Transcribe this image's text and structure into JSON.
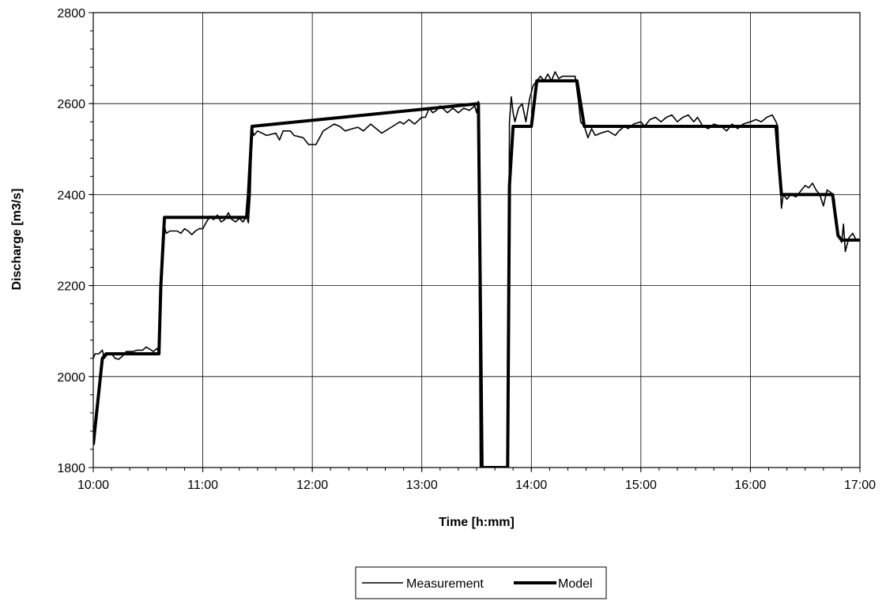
{
  "chart_data": {
    "type": "line",
    "title": "",
    "xlabel": "Time [h:mm]",
    "ylabel": "Discharge [m3/s]",
    "xlim": [
      "10:00",
      "17:00"
    ],
    "ylim": [
      1800,
      2800
    ],
    "grid": true,
    "legend_position": "bottom-center",
    "x_tick_labels": [
      "10:00",
      "11:00",
      "12:00",
      "13:00",
      "14:00",
      "15:00",
      "16:00",
      "17:00"
    ],
    "y_tick_labels": [
      "1800",
      "2000",
      "2200",
      "2400",
      "2600",
      "2800"
    ],
    "series": [
      {
        "name": "Measurement",
        "line_width": "thin",
        "color": "#000000",
        "points": [
          [
            "10:00",
            2040
          ],
          [
            "10:01",
            2050
          ],
          [
            "10:03",
            2050
          ],
          [
            "10:05",
            2058
          ],
          [
            "10:06",
            2040
          ],
          [
            "10:08",
            2050
          ],
          [
            "10:10",
            2050
          ],
          [
            "10:12",
            2040
          ],
          [
            "10:14",
            2038
          ],
          [
            "10:16",
            2045
          ],
          [
            "10:18",
            2055
          ],
          [
            "10:22",
            2055
          ],
          [
            "10:24",
            2058
          ],
          [
            "10:27",
            2058
          ],
          [
            "10:29",
            2065
          ],
          [
            "10:31",
            2060
          ],
          [
            "10:33",
            2055
          ],
          [
            "10:35",
            2062
          ],
          [
            "10:36",
            2050
          ],
          [
            "10:37",
            2200
          ],
          [
            "10:38",
            2310
          ],
          [
            "10:39",
            2330
          ],
          [
            "10:40",
            2315
          ],
          [
            "10:42",
            2320
          ],
          [
            "10:46",
            2320
          ],
          [
            "10:48",
            2315
          ],
          [
            "10:50",
            2325
          ],
          [
            "10:52",
            2320
          ],
          [
            "10:54",
            2312
          ],
          [
            "10:56",
            2320
          ],
          [
            "10:58",
            2325
          ],
          [
            "11:00",
            2325
          ],
          [
            "11:02",
            2340
          ],
          [
            "11:04",
            2352
          ],
          [
            "11:06",
            2345
          ],
          [
            "11:08",
            2355
          ],
          [
            "11:10",
            2340
          ],
          [
            "11:12",
            2345
          ],
          [
            "11:14",
            2360
          ],
          [
            "11:16",
            2345
          ],
          [
            "11:18",
            2340
          ],
          [
            "11:20",
            2348
          ],
          [
            "11:22",
            2340
          ],
          [
            "11:24",
            2352
          ],
          [
            "11:25",
            2338
          ],
          [
            "11:26",
            2400
          ],
          [
            "11:27",
            2545
          ],
          [
            "11:28",
            2530
          ],
          [
            "11:30",
            2540
          ],
          [
            "11:35",
            2530
          ],
          [
            "11:40",
            2535
          ],
          [
            "11:42",
            2520
          ],
          [
            "11:44",
            2540
          ],
          [
            "11:48",
            2540
          ],
          [
            "11:50",
            2530
          ],
          [
            "11:55",
            2525
          ],
          [
            "11:58",
            2510
          ],
          [
            "12:02",
            2510
          ],
          [
            "12:04",
            2525
          ],
          [
            "12:06",
            2540
          ],
          [
            "12:10",
            2550
          ],
          [
            "12:12",
            2555
          ],
          [
            "12:15",
            2550
          ],
          [
            "12:18",
            2540
          ],
          [
            "12:22",
            2545
          ],
          [
            "12:25",
            2548
          ],
          [
            "12:28",
            2540
          ],
          [
            "12:32",
            2555
          ],
          [
            "12:35",
            2545
          ],
          [
            "12:38",
            2535
          ],
          [
            "12:40",
            2540
          ],
          [
            "12:44",
            2550
          ],
          [
            "12:48",
            2560
          ],
          [
            "12:50",
            2555
          ],
          [
            "12:53",
            2565
          ],
          [
            "12:56",
            2555
          ],
          [
            "13:00",
            2570
          ],
          [
            "13:02",
            2570
          ],
          [
            "13:04",
            2590
          ],
          [
            "13:06",
            2580
          ],
          [
            "13:08",
            2585
          ],
          [
            "13:10",
            2595
          ],
          [
            "13:14",
            2580
          ],
          [
            "13:17",
            2590
          ],
          [
            "13:20",
            2580
          ],
          [
            "13:23",
            2590
          ],
          [
            "13:26",
            2585
          ],
          [
            "13:29",
            2595
          ],
          [
            "13:30",
            2580
          ],
          [
            "13:31",
            2605
          ],
          [
            "13:32",
            1800
          ],
          [
            "13:47",
            1800
          ],
          [
            "13:48",
            2560
          ],
          [
            "13:49",
            2615
          ],
          [
            "13:50",
            2580
          ],
          [
            "13:51",
            2560
          ],
          [
            "13:52",
            2575
          ],
          [
            "13:53",
            2590
          ],
          [
            "13:55",
            2600
          ],
          [
            "13:57",
            2560
          ],
          [
            "13:59",
            2610
          ],
          [
            "14:01",
            2640
          ],
          [
            "14:03",
            2650
          ],
          [
            "14:05",
            2660
          ],
          [
            "14:07",
            2650
          ],
          [
            "14:09",
            2665
          ],
          [
            "14:11",
            2650
          ],
          [
            "14:13",
            2670
          ],
          [
            "14:15",
            2655
          ],
          [
            "14:17",
            2660
          ],
          [
            "14:20",
            2660
          ],
          [
            "14:24",
            2660
          ],
          [
            "14:26",
            2600
          ],
          [
            "14:27",
            2560
          ],
          [
            "14:29",
            2550
          ],
          [
            "14:31",
            2525
          ],
          [
            "14:33",
            2545
          ],
          [
            "14:35",
            2530
          ],
          [
            "14:38",
            2535
          ],
          [
            "14:42",
            2540
          ],
          [
            "14:46",
            2530
          ],
          [
            "14:48",
            2540
          ],
          [
            "14:51",
            2550
          ],
          [
            "14:53",
            2545
          ],
          [
            "14:56",
            2555
          ],
          [
            "15:00",
            2560
          ],
          [
            "15:02",
            2550
          ],
          [
            "15:05",
            2565
          ],
          [
            "15:08",
            2570
          ],
          [
            "15:11",
            2560
          ],
          [
            "15:14",
            2570
          ],
          [
            "15:17",
            2575
          ],
          [
            "15:20",
            2560
          ],
          [
            "15:23",
            2570
          ],
          [
            "15:26",
            2575
          ],
          [
            "15:29",
            2560
          ],
          [
            "15:31",
            2570
          ],
          [
            "15:34",
            2550
          ],
          [
            "15:37",
            2545
          ],
          [
            "15:40",
            2555
          ],
          [
            "15:44",
            2550
          ],
          [
            "15:47",
            2540
          ],
          [
            "15:50",
            2555
          ],
          [
            "15:53",
            2545
          ],
          [
            "15:56",
            2555
          ],
          [
            "16:00",
            2560
          ],
          [
            "16:03",
            2565
          ],
          [
            "16:06",
            2560
          ],
          [
            "16:09",
            2570
          ],
          [
            "16:12",
            2575
          ],
          [
            "16:14",
            2560
          ],
          [
            "16:15",
            2550
          ],
          [
            "16:16",
            2450
          ],
          [
            "16:17",
            2370
          ],
          [
            "16:18",
            2400
          ],
          [
            "16:20",
            2390
          ],
          [
            "16:22",
            2400
          ],
          [
            "16:25",
            2395
          ],
          [
            "16:28",
            2410
          ],
          [
            "16:30",
            2420
          ],
          [
            "16:32",
            2415
          ],
          [
            "16:34",
            2425
          ],
          [
            "16:36",
            2410
          ],
          [
            "16:38",
            2400
          ],
          [
            "16:40",
            2375
          ],
          [
            "16:42",
            2410
          ],
          [
            "16:44",
            2405
          ],
          [
            "16:46",
            2390
          ],
          [
            "16:47",
            2330
          ],
          [
            "16:48",
            2310
          ],
          [
            "16:50",
            2295
          ],
          [
            "16:51",
            2335
          ],
          [
            "16:52",
            2275
          ],
          [
            "16:54",
            2305
          ],
          [
            "16:56",
            2315
          ],
          [
            "16:58",
            2300
          ],
          [
            "17:00",
            2300
          ]
        ]
      },
      {
        "name": "Model",
        "line_width": "thick",
        "color": "#000000",
        "points": [
          [
            "10:00",
            1850
          ],
          [
            "10:05",
            2040
          ],
          [
            "10:07",
            2050
          ],
          [
            "10:36",
            2050
          ],
          [
            "10:37",
            2200
          ],
          [
            "10:39",
            2350
          ],
          [
            "11:24",
            2350
          ],
          [
            "11:25",
            2400
          ],
          [
            "11:27",
            2550
          ],
          [
            "13:31",
            2600
          ],
          [
            "13:33",
            1800
          ],
          [
            "13:47",
            1800
          ],
          [
            "13:48",
            2420
          ],
          [
            "13:50",
            2550
          ],
          [
            "14:00",
            2550
          ],
          [
            "14:03",
            2650
          ],
          [
            "14:25",
            2650
          ],
          [
            "14:29",
            2550
          ],
          [
            "16:14",
            2550
          ],
          [
            "16:17",
            2400
          ],
          [
            "16:45",
            2400
          ],
          [
            "16:48",
            2310
          ],
          [
            "16:50",
            2300
          ],
          [
            "17:00",
            2300
          ]
        ]
      }
    ]
  }
}
